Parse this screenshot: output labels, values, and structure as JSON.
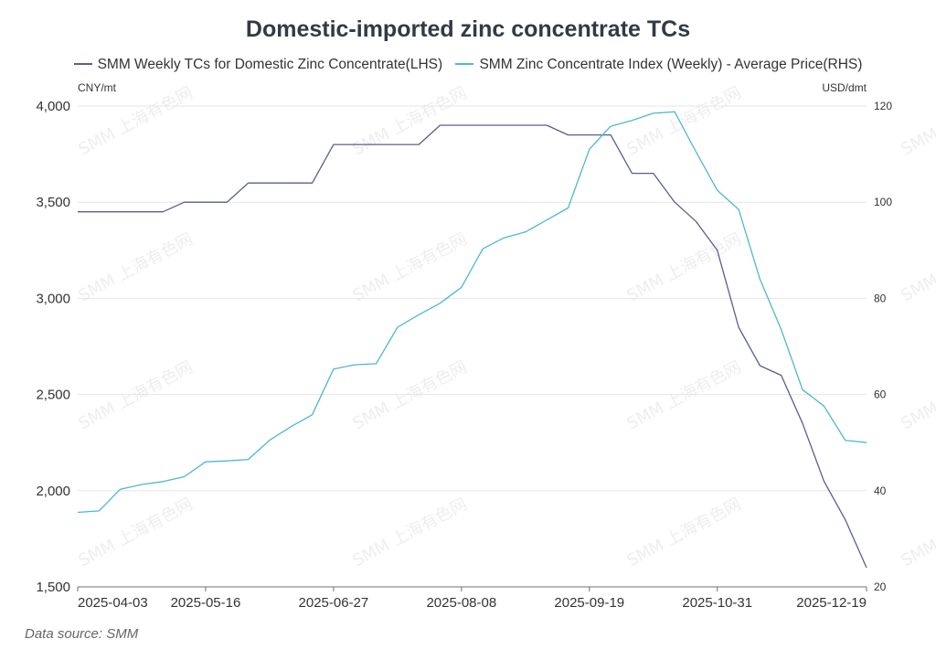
{
  "chart_data": {
    "type": "line",
    "title": "Domestic-imported zinc concentrate TCs",
    "x": [
      "2025-04-03",
      "2025-04-10",
      "2025-04-17",
      "2025-04-24",
      "2025-05-02",
      "2025-05-09",
      "2025-05-16",
      "2025-05-23",
      "2025-05-30",
      "2025-06-06",
      "2025-06-13",
      "2025-06-20",
      "2025-06-27",
      "2025-07-04",
      "2025-07-11",
      "2025-07-18",
      "2025-07-25",
      "2025-08-01",
      "2025-08-08",
      "2025-08-15",
      "2025-08-22",
      "2025-08-29",
      "2025-09-05",
      "2025-09-12",
      "2025-09-19",
      "2025-09-26",
      "2025-10-03",
      "2025-10-10",
      "2025-10-17",
      "2025-10-24",
      "2025-10-31",
      "2025-11-07",
      "2025-11-14",
      "2025-11-21",
      "2025-11-28",
      "2025-12-05",
      "2025-12-12",
      "2025-12-19"
    ],
    "x_tick_labels": [
      "2025-04-03",
      "2025-05-16",
      "2025-06-27",
      "2025-08-08",
      "2025-09-19",
      "2025-10-31",
      "2025-12-19"
    ],
    "y_left": {
      "unit": "CNY/mt",
      "ylim": [
        1500,
        4000
      ],
      "ticks": [
        "1,500",
        "2,000",
        "2,500",
        "3,000",
        "3,500",
        "4,000"
      ]
    },
    "y_right": {
      "unit": "USD/dmt",
      "ylim": [
        20,
        120
      ],
      "ticks": [
        "20",
        "40",
        "60",
        "80",
        "100",
        "120"
      ]
    },
    "grid": true,
    "legend_position": "top",
    "series": [
      {
        "name": "SMM Weekly TCs for Domestic Zinc Concentrate(LHS)",
        "axis": "left",
        "color": "#5c5c91",
        "values": [
          3450,
          3450,
          3450,
          3450,
          3450,
          3500,
          3500,
          3500,
          3600,
          3600,
          3600,
          3600,
          3800,
          3800,
          3800,
          3800,
          3800,
          3900,
          3900,
          3900,
          3900,
          3900,
          3900,
          3850,
          3850,
          3850,
          3650,
          3650,
          3500,
          3400,
          3250,
          2850,
          2650,
          2600,
          2350,
          2050,
          1850,
          1600
        ]
      },
      {
        "name": "SMM Zinc Concentrate Index (Weekly) - Average Price(RHS)",
        "axis": "right",
        "color": "#4db8d1",
        "values": [
          35.5,
          35.8,
          40.3,
          41.3,
          41.9,
          42.9,
          46.0,
          46.2,
          46.5,
          50.5,
          53.3,
          55.8,
          65.3,
          66.2,
          66.4,
          74.0,
          76.6,
          79.0,
          82.3,
          90.3,
          92.6,
          93.8,
          96.3,
          98.8,
          111.0,
          115.8,
          117.0,
          118.5,
          118.8,
          110.5,
          102.5,
          98.5,
          84.0,
          73.5,
          61.0,
          57.6,
          50.5,
          50.0
        ]
      }
    ]
  },
  "legend": {
    "item1": "SMM Weekly TCs for Domestic Zinc Concentrate(LHS)",
    "item2": "SMM Zinc Concentrate Index (Weekly) - Average Price(RHS)"
  },
  "watermark_text": "SMM 上海有色网",
  "footer": {
    "source": "Data source:  SMM"
  }
}
